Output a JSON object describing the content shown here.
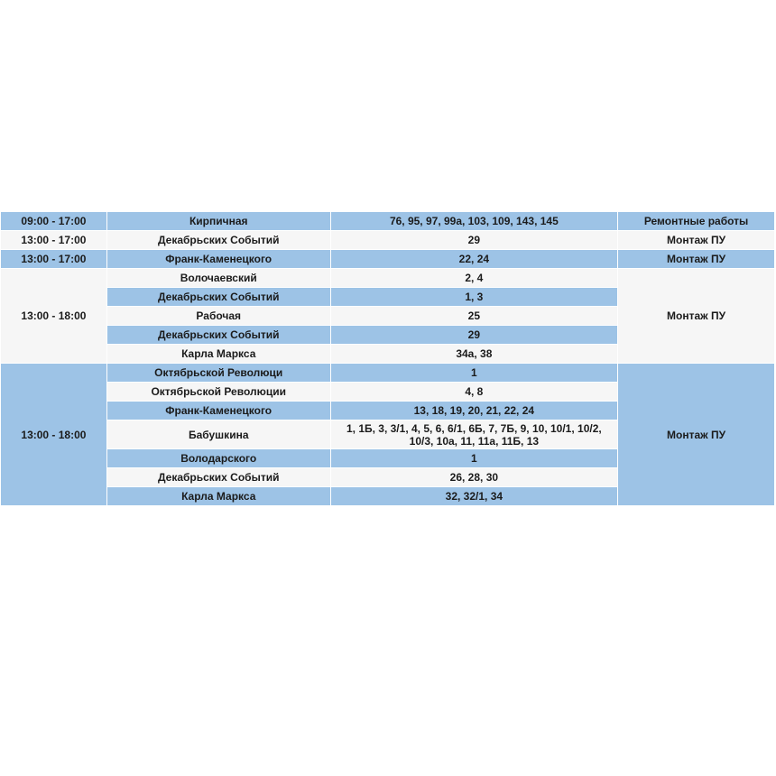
{
  "colors": {
    "blue_row": "#9dc3e6",
    "light_row": "#f6f6f6"
  },
  "rows": [
    {
      "time": "09:00 - 17:00",
      "street": "Кирпичная",
      "houses": "76, 95, 97, 99а, 103, 109, 143, 145",
      "work": "Ремонтные работы"
    },
    {
      "time": "13:00 - 17:00",
      "street": "Декабрьских Событий",
      "houses": "29",
      "work": "Монтаж ПУ"
    },
    {
      "time": "13:00 - 17:00",
      "street": "Франк-Каменецкого",
      "houses": "22, 24",
      "work": "Монтаж ПУ"
    }
  ],
  "group1": {
    "time": "13:00 - 18:00",
    "work": "Монтаж ПУ",
    "items": [
      {
        "street": "Волочаевский",
        "houses": "2, 4"
      },
      {
        "street": "Декабрьских Событий",
        "houses": "1, 3"
      },
      {
        "street": "Рабочая",
        "houses": "25"
      },
      {
        "street": "Декабрьских Событий",
        "houses": "29"
      },
      {
        "street": "Карла Маркса",
        "houses": "34а, 38"
      }
    ]
  },
  "group2": {
    "time": "13:00 - 18:00",
    "work": "Монтаж ПУ",
    "items": [
      {
        "street": "Октябрьской Революци",
        "houses": "1"
      },
      {
        "street": "Октябрьской Революции",
        "houses": "4, 8"
      },
      {
        "street": "Франк-Каменецкого",
        "houses": "13, 18, 19, 20, 21, 22, 24"
      },
      {
        "street": "Бабушкина",
        "houses": "1, 1Б, 3, 3/1, 4, 5, 6, 6/1, 6Б, 7, 7Б, 9, 10, 10/1, 10/2, 10/3, 10а, 11, 11а, 11Б, 13"
      },
      {
        "street": "Володарского",
        "houses": "1"
      },
      {
        "street": "Декабрьских Событий",
        "houses": "26, 28, 30"
      },
      {
        "street": "Карла Маркса",
        "houses": "32, 32/1, 34"
      }
    ]
  }
}
